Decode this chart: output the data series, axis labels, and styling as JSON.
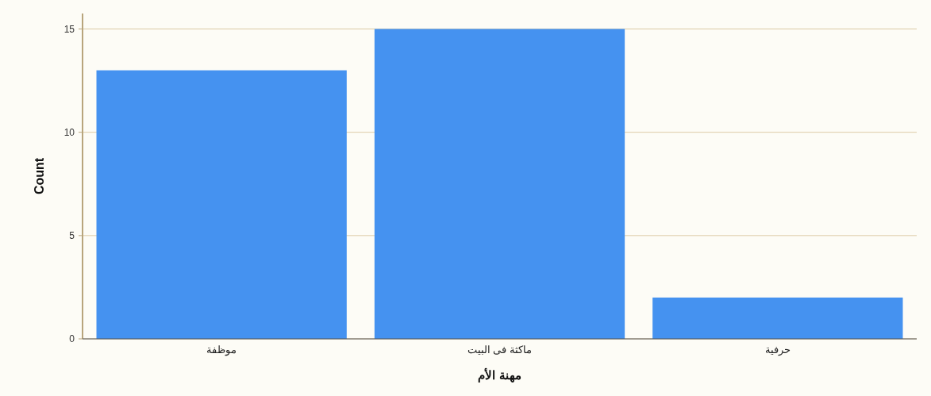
{
  "chart_data": {
    "type": "bar",
    "categories": [
      "موظفة",
      "ماكثة فى البيت",
      "حرفية"
    ],
    "values": [
      13,
      15,
      2
    ],
    "color": "#4592f0",
    "xlabel": "مهنة الأم",
    "ylabel": "Count",
    "ylim": [
      0,
      15.75
    ],
    "yticks": [
      0,
      5,
      10,
      15
    ],
    "grid": "y"
  }
}
